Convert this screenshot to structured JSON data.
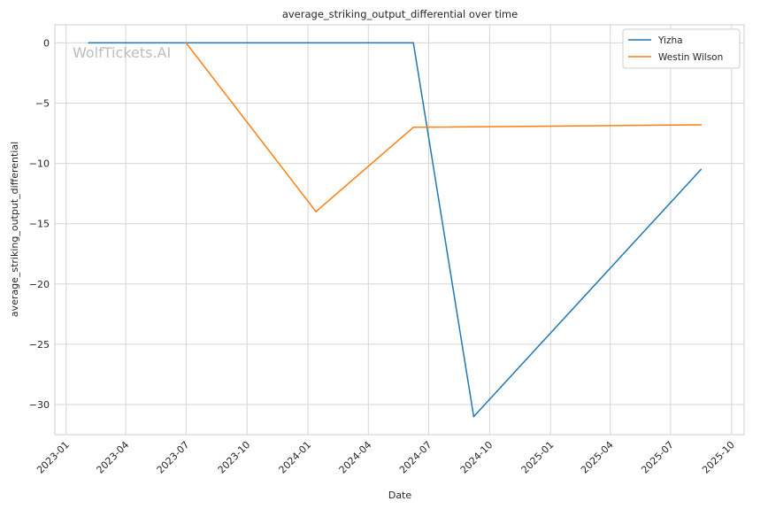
{
  "chart_data": {
    "type": "line",
    "title": "average_striking_output_differential over time",
    "xlabel": "Date",
    "ylabel": "average_striking_output_differential",
    "watermark": "WolfTickets.AI",
    "x_ticks": [
      "2023-01",
      "2023-04",
      "2023-07",
      "2023-10",
      "2024-01",
      "2024-04",
      "2024-07",
      "2024-10",
      "2025-01",
      "2025-04",
      "2025-07",
      "2025-10"
    ],
    "y_ticks": [
      0,
      -5,
      -10,
      -15,
      -20,
      -25,
      -30
    ],
    "y_tick_labels": [
      "0",
      "−5",
      "−10",
      "−15",
      "−20",
      "−25",
      "−30"
    ],
    "xlim": [
      "2022-12-15",
      "2025-10-20"
    ],
    "ylim": [
      -32.5,
      1.5
    ],
    "grid": true,
    "legend": "top-right",
    "series": [
      {
        "name": "Yizha",
        "color": "#1f77b4",
        "x": [
          "2023-02-04",
          "2024-06-08",
          "2024-09-07",
          "2025-08-16"
        ],
        "y": [
          0,
          0,
          -31,
          -10.5
        ]
      },
      {
        "name": "Westin Wilson",
        "color": "#ff7f0e",
        "x": [
          "2023-07-01",
          "2024-01-13",
          "2024-06-08",
          "2025-08-16"
        ],
        "y": [
          0,
          -14,
          -7,
          -6.8
        ]
      }
    ]
  }
}
